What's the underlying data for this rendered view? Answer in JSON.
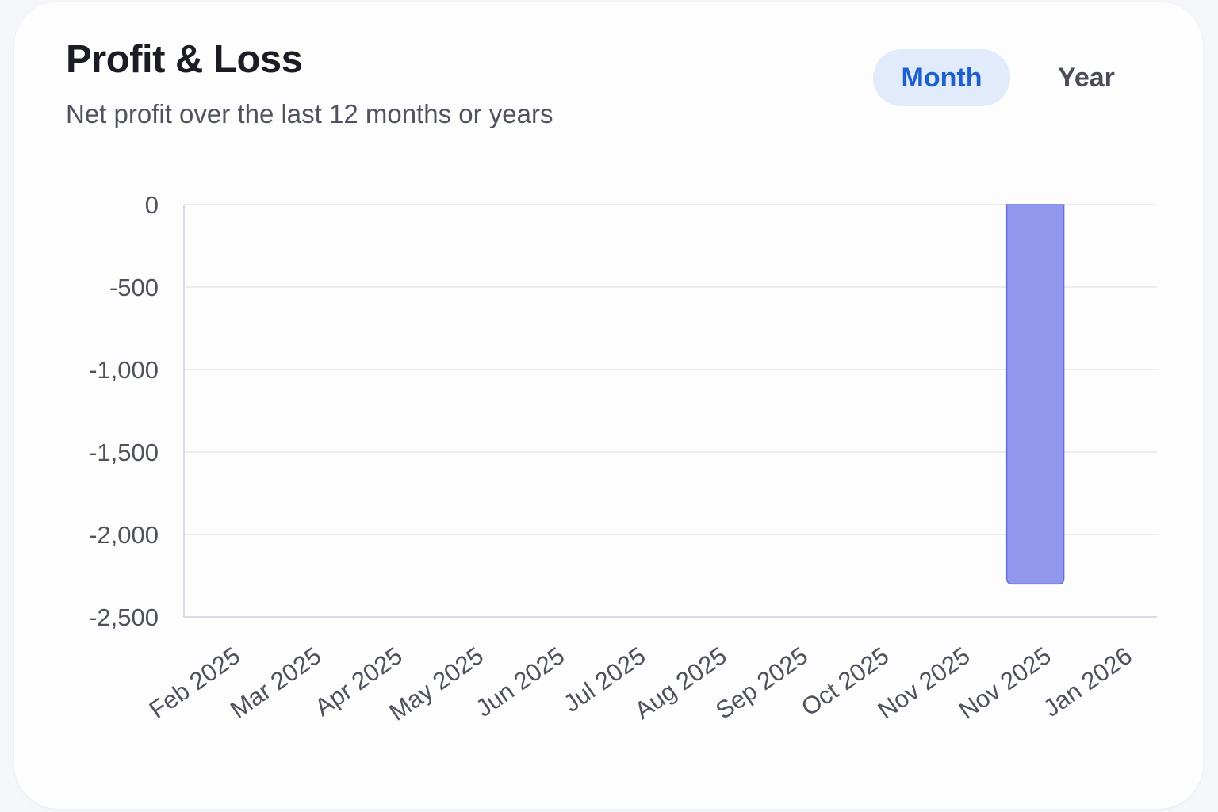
{
  "header": {
    "title": "Profit & Loss",
    "subtitle": "Net profit over the last 12 months or years"
  },
  "toggle": {
    "options": [
      "Month",
      "Year"
    ],
    "selected": "Month"
  },
  "colors": {
    "bar_fill": "#9297ee",
    "bar_stroke": "#6a6fdc",
    "grid": "#e7e8ee",
    "axis": "#d9dae4",
    "active_toggle_bg": "#e1ebfb",
    "active_toggle_text": "#1b5fd0"
  },
  "chart_data": {
    "type": "bar",
    "categories": [
      "Feb 2025",
      "Mar 2025",
      "Apr 2025",
      "May 2025",
      "Jun 2025",
      "Jul 2025",
      "Aug 2025",
      "Sep 2025",
      "Oct 2025",
      "Nov 2025",
      "Nov 2025",
      "Jan 2026"
    ],
    "values": [
      0,
      0,
      0,
      0,
      0,
      0,
      0,
      0,
      0,
      0,
      -2300,
      0
    ],
    "title": "",
    "xlabel": "",
    "ylabel": "",
    "ylim": [
      -2500,
      0
    ],
    "yticks": [
      0,
      -500,
      -1000,
      -1500,
      -2000,
      -2500
    ],
    "ytick_labels": [
      "0",
      "-500",
      "-1,000",
      "-1,500",
      "-2,000",
      "-2,500"
    ],
    "grid": true,
    "legend": "none"
  }
}
